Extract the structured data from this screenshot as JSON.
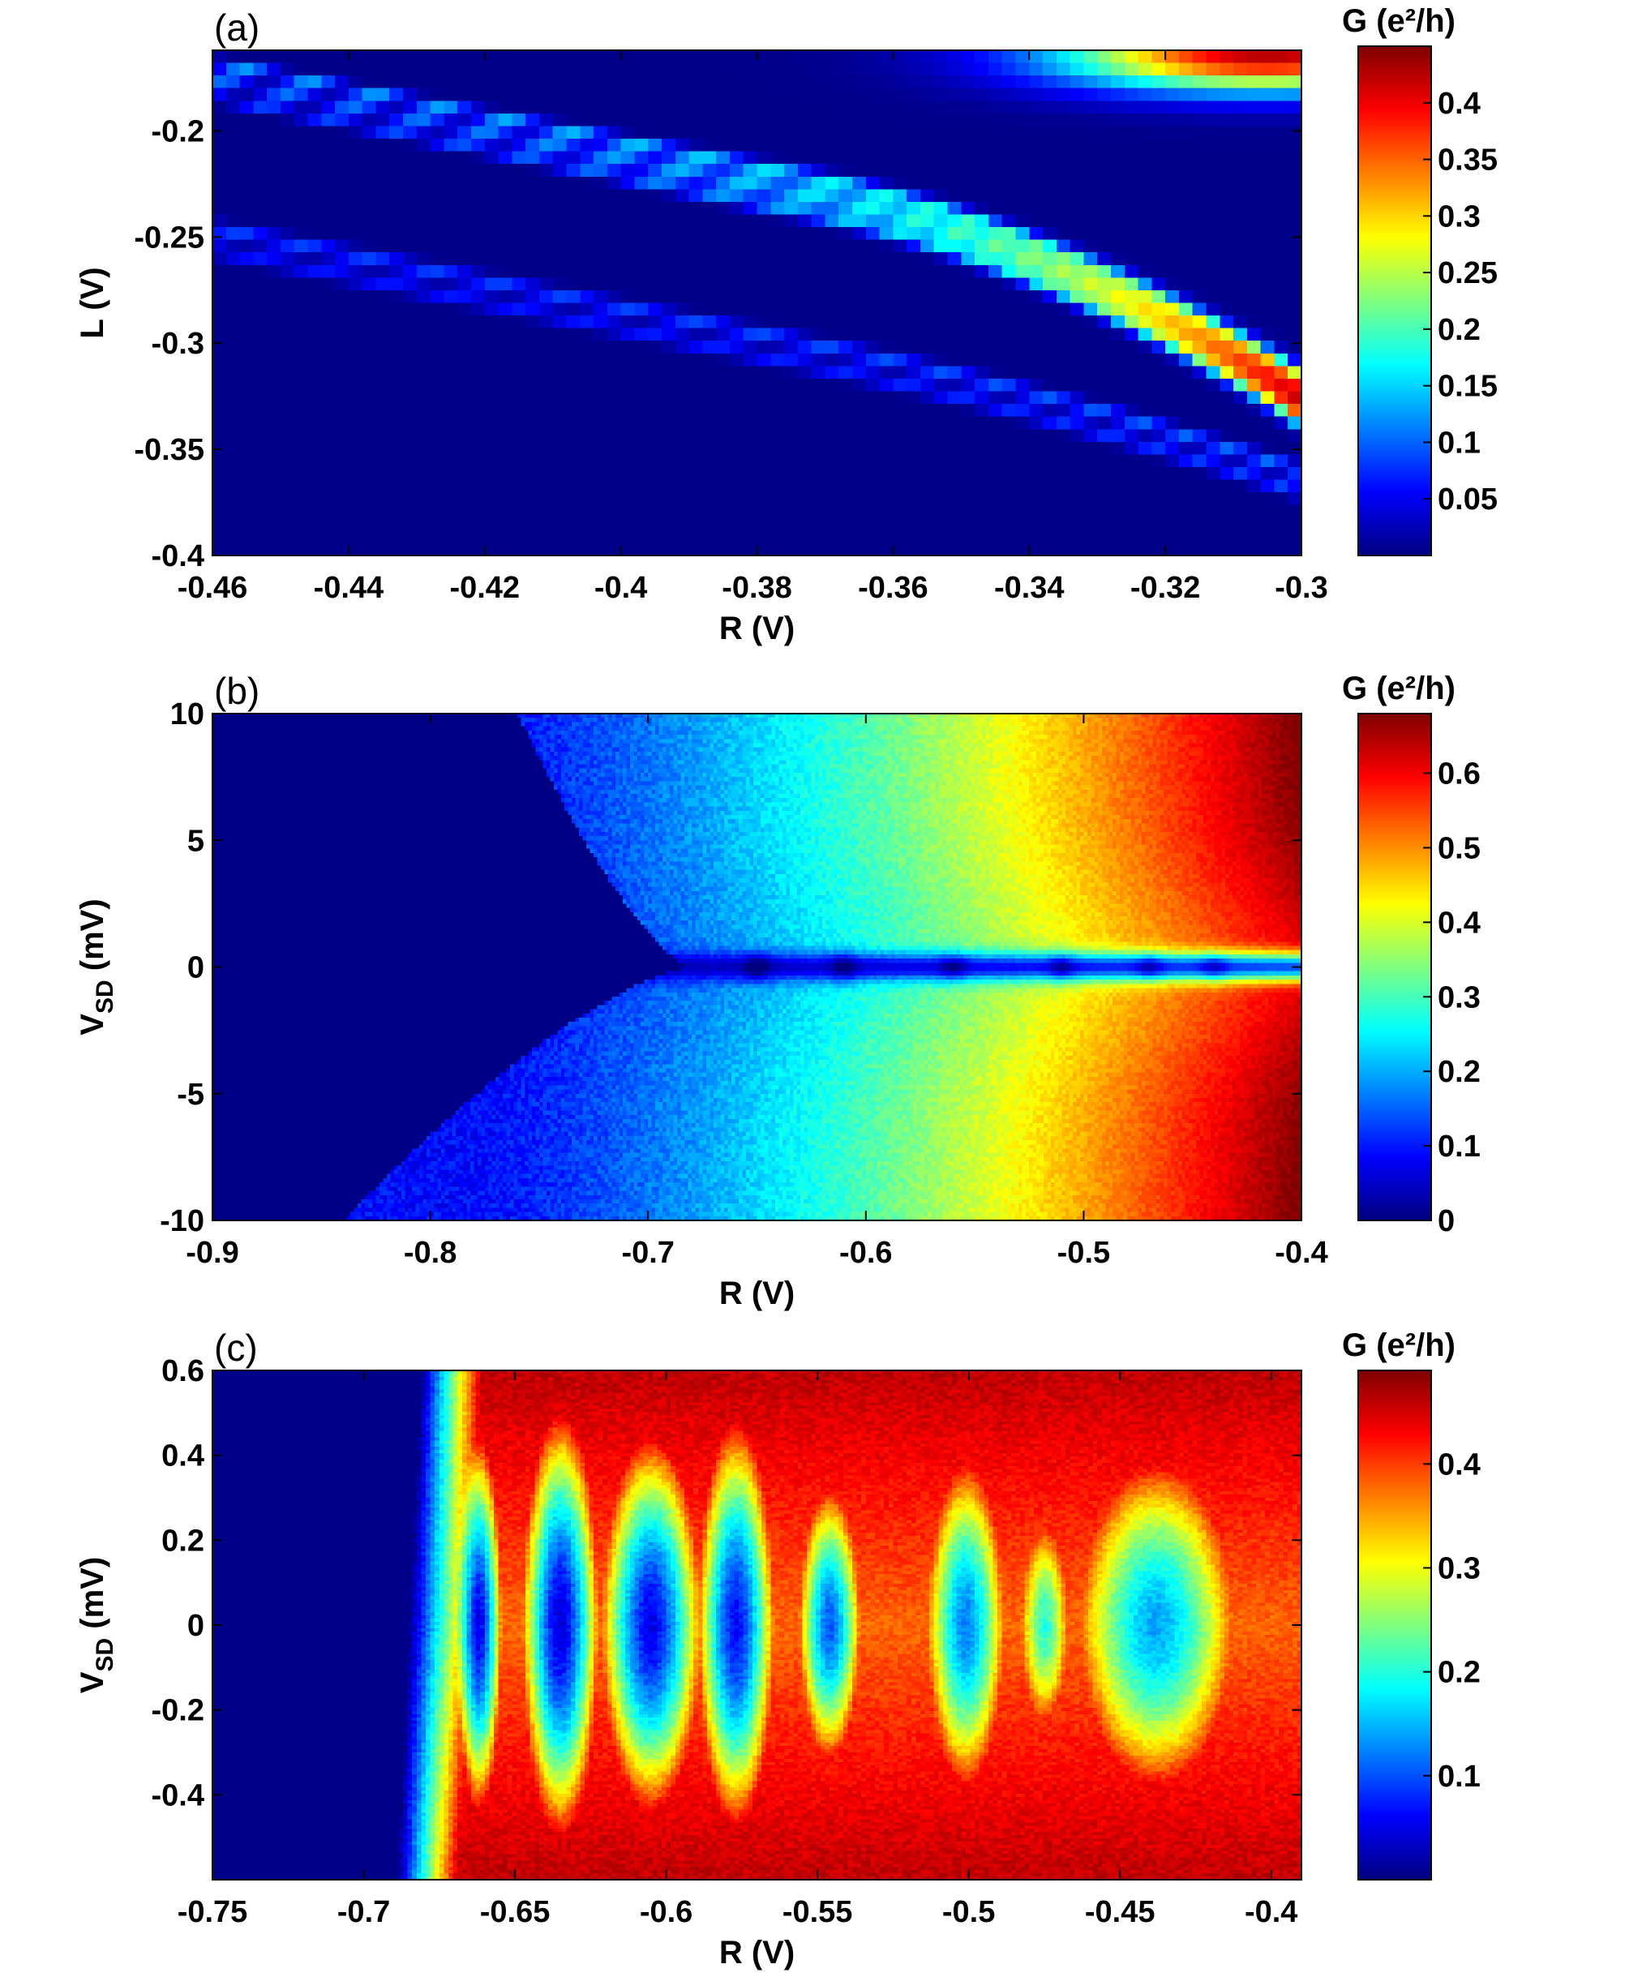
{
  "colors": {
    "axis": "#000000",
    "colormap": "jet"
  },
  "chart_data": [
    {
      "type": "heatmap",
      "panel_label": "(a)",
      "xlabel": "R (V)",
      "ylabel": "L (V)",
      "xlim": [
        -0.46,
        -0.3
      ],
      "ylim": [
        -0.4,
        -0.162
      ],
      "x_ticks": [
        -0.46,
        -0.44,
        -0.42,
        -0.4,
        -0.38,
        -0.36,
        -0.34,
        -0.32,
        -0.3
      ],
      "x_tick_labels": [
        "-0.46",
        "-0.44",
        "-0.42",
        "-0.4",
        "-0.38",
        "-0.36",
        "-0.34",
        "-0.32",
        "-0.3"
      ],
      "y_ticks": [
        -0.2,
        -0.25,
        -0.3,
        -0.35,
        -0.4
      ],
      "y_tick_labels": [
        "-0.2",
        "-0.25",
        "-0.3",
        "-0.35",
        "-0.4"
      ],
      "colorbar": {
        "title": "G (e²/h)",
        "range": [
          0,
          0.45
        ],
        "ticks": [
          0.05,
          0.1,
          0.15,
          0.2,
          0.25,
          0.3,
          0.35,
          0.4
        ],
        "tick_labels": [
          "0.05",
          "0.1",
          "0.15",
          "0.2",
          "0.25",
          "0.3",
          "0.35",
          "0.4"
        ]
      },
      "features": {
        "description_free": true,
        "lines": [
          {
            "x_start": -0.46,
            "y_start": -0.168,
            "slope": 0.62,
            "peak": 0.12,
            "peak_right": 0.26
          },
          {
            "x_start": -0.46,
            "y_start": -0.176,
            "slope": 0.62,
            "peak": 0.1,
            "peak_right": 0.3
          },
          {
            "x_start": -0.46,
            "y_start": -0.184,
            "slope": 0.62,
            "peak": 0.08,
            "peak_right": 0.28
          },
          {
            "x_start": -0.46,
            "y_start": -0.246,
            "slope": 0.62,
            "peak": 0.08,
            "peak_right": 0.1
          },
          {
            "x_start": -0.46,
            "y_start": -0.256,
            "slope": 0.62,
            "peak": 0.06,
            "peak_right": 0.08
          }
        ],
        "hot_corner": {
          "x": -0.305,
          "y": -0.165,
          "value": 0.42
        }
      }
    },
    {
      "type": "heatmap",
      "panel_label": "(b)",
      "xlabel": "R (V)",
      "ylabel": "VSD (mV)",
      "ylabel_main": "V",
      "ylabel_sub": "SD",
      "ylabel_unit": " (mV)",
      "xlim": [
        -0.9,
        -0.4
      ],
      "ylim": [
        -10,
        10
      ],
      "x_ticks": [
        -0.9,
        -0.8,
        -0.7,
        -0.6,
        -0.5,
        -0.4
      ],
      "x_tick_labels": [
        "-0.9",
        "-0.8",
        "-0.7",
        "-0.6",
        "-0.5",
        "-0.4"
      ],
      "y_ticks": [
        10,
        5,
        0,
        -5,
        -10
      ],
      "y_tick_labels": [
        "10",
        "5",
        "0",
        "-5",
        "-10"
      ],
      "colorbar": {
        "title": "G (e²/h)",
        "range": [
          0,
          0.68
        ],
        "ticks": [
          0,
          0.1,
          0.2,
          0.3,
          0.4,
          0.5,
          0.6
        ],
        "tick_labels": [
          "0",
          "0.1",
          "0.2",
          "0.3",
          "0.4",
          "0.5",
          "0.6"
        ]
      },
      "features": {
        "pinch_off_R": -0.68,
        "edge_at_plus10": -0.76,
        "edge_at_minus10": -0.84,
        "max_conductance": 0.66,
        "zero_bias_dip_values": [
          -0.65,
          -0.61,
          -0.56,
          -0.51,
          -0.47,
          -0.44
        ]
      }
    },
    {
      "type": "heatmap",
      "panel_label": "(c)",
      "xlabel": "R (V)",
      "ylabel": "VSD (mV)",
      "ylabel_main": "V",
      "ylabel_sub": "SD",
      "ylabel_unit": " (mV)",
      "xlim": [
        -0.75,
        -0.39
      ],
      "ylim": [
        -0.6,
        0.6
      ],
      "x_ticks": [
        -0.75,
        -0.7,
        -0.65,
        -0.6,
        -0.55,
        -0.5,
        -0.45,
        -0.4
      ],
      "x_tick_labels": [
        "-0.75",
        "-0.7",
        "-0.65",
        "-0.6",
        "-0.55",
        "-0.5",
        "-0.45",
        "-0.4"
      ],
      "y_ticks": [
        0.6,
        0.4,
        0.2,
        0,
        -0.2,
        -0.4
      ],
      "y_tick_labels": [
        "0.6",
        "0.4",
        "0.2",
        "0",
        "-0.2",
        "-0.4"
      ],
      "colorbar": {
        "title": "G (e²/h)",
        "range": [
          0,
          0.49
        ],
        "ticks": [
          0.1,
          0.2,
          0.3,
          0.4
        ],
        "tick_labels": [
          "0.1",
          "0.2",
          "0.3",
          "0.4"
        ]
      },
      "features": {
        "onset_R_top": -0.677,
        "onset_R_bottom": -0.685,
        "diamonds": [
          {
            "R": -0.662,
            "half_width": 0.006,
            "half_height": 0.35,
            "depth": 0.05
          },
          {
            "R": -0.635,
            "half_width": 0.01,
            "half_height": 0.4,
            "depth": 0.04
          },
          {
            "R": -0.605,
            "half_width": 0.013,
            "half_height": 0.35,
            "depth": 0.05
          },
          {
            "R": -0.577,
            "half_width": 0.01,
            "half_height": 0.38,
            "depth": 0.06
          },
          {
            "R": -0.546,
            "half_width": 0.008,
            "half_height": 0.25,
            "depth": 0.1
          },
          {
            "R": -0.501,
            "half_width": 0.01,
            "half_height": 0.3,
            "depth": 0.12
          },
          {
            "R": -0.475,
            "half_width": 0.006,
            "half_height": 0.18,
            "depth": 0.2
          },
          {
            "R": -0.438,
            "half_width": 0.02,
            "half_height": 0.3,
            "depth": 0.14
          }
        ]
      }
    }
  ]
}
